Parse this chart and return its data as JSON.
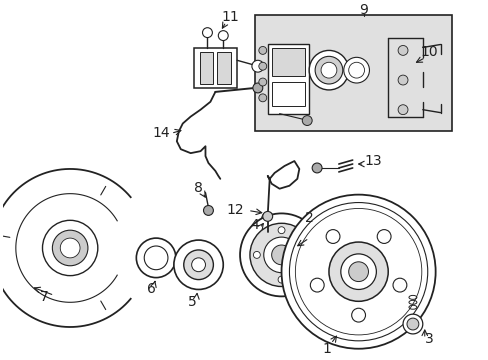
{
  "bg_color": "#ffffff",
  "lc": "#222222",
  "gray1": "#cccccc",
  "gray2": "#aaaaaa",
  "gray3": "#888888",
  "inset_fill": "#e0e0e0",
  "figsize": [
    4.89,
    3.6
  ],
  "dpi": 100
}
